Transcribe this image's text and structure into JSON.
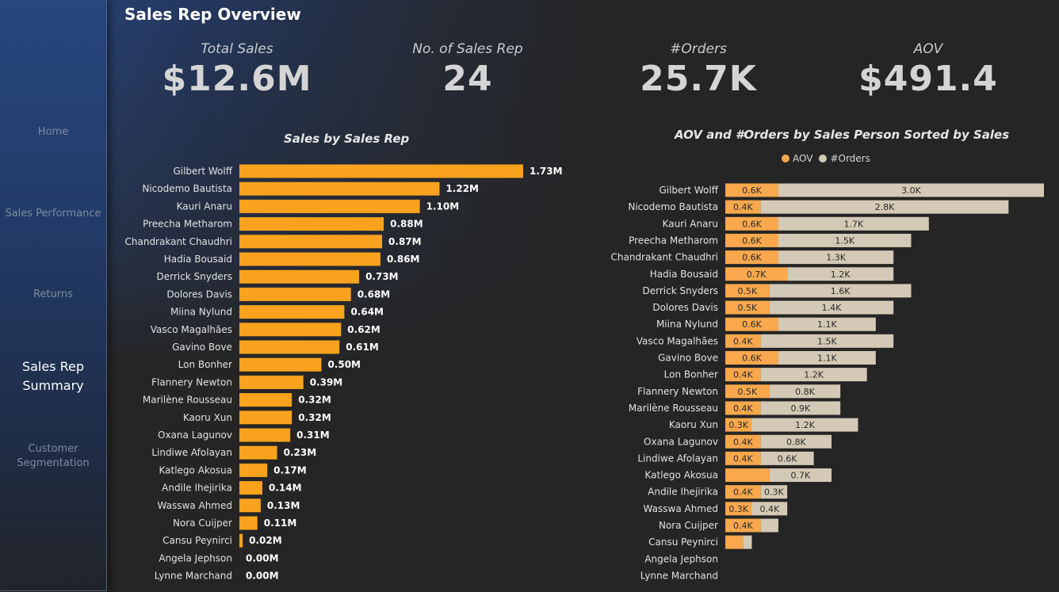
{
  "page": {
    "title": "Sales Rep Overview"
  },
  "nav": [
    {
      "label": "Home",
      "active": false
    },
    {
      "label": "Sales Performance",
      "active": false
    },
    {
      "label": "Returns",
      "active": false
    },
    {
      "label": "Sales Rep Summary",
      "active": true
    },
    {
      "label": "Customer Segmentation",
      "active": false
    }
  ],
  "kpis": [
    {
      "label": "Total Sales",
      "value": "$12.6M"
    },
    {
      "label": "No. of Sales Rep",
      "value": "24"
    },
    {
      "label": "#Orders",
      "value": "25.7K"
    },
    {
      "label": "AOV",
      "value": "$491.4"
    }
  ],
  "colors": {
    "bar": "#f9a21d",
    "aov": "#f9a84d",
    "orders": "#d4c9b6"
  },
  "legend": {
    "aov": "AOV",
    "orders": "#Orders"
  },
  "chart_data": [
    {
      "type": "bar",
      "orientation": "horizontal",
      "title": "Sales by Sales Rep",
      "categories": [
        "Gilbert Wolff",
        "Nicodemo Bautista",
        "Kauri Anaru",
        "Preecha Metharom",
        "Chandrakant Chaudhri",
        "Hadia Bousaid",
        "Derrick Snyders",
        "Dolores Davis",
        "Miina Nylund",
        "Vasco Magalhães",
        "Gavino Bove",
        "Lon Bonher",
        "Flannery Newton",
        "Marilène Rousseau",
        "Kaoru Xun",
        "Oxana Lagunov",
        "Lindiwe Afolayan",
        "Katlego Akosua",
        "Andile Ihejirika",
        "Wasswa Ahmed",
        "Nora Cuijper",
        "Cansu Peynirci",
        "Angela Jephson",
        "Lynne Marchand"
      ],
      "values": [
        1.73,
        1.22,
        1.1,
        0.88,
        0.87,
        0.86,
        0.73,
        0.68,
        0.64,
        0.62,
        0.61,
        0.5,
        0.39,
        0.32,
        0.32,
        0.31,
        0.23,
        0.17,
        0.14,
        0.13,
        0.11,
        0.02,
        0.0,
        0.0
      ],
      "labels": [
        "1.73M",
        "1.22M",
        "1.10M",
        "0.88M",
        "0.87M",
        "0.86M",
        "0.73M",
        "0.68M",
        "0.64M",
        "0.62M",
        "0.61M",
        "0.50M",
        "0.39M",
        "0.32M",
        "0.32M",
        "0.31M",
        "0.23M",
        "0.17M",
        "0.14M",
        "0.13M",
        "0.11M",
        "0.02M",
        "0.00M",
        "0.00M"
      ],
      "unit": "M",
      "xlim": [
        0,
        1.73
      ]
    },
    {
      "type": "bar",
      "orientation": "horizontal",
      "stacked": true,
      "title": "AOV and #Orders by Sales Person Sorted by Sales",
      "categories": [
        "Gilbert Wolff",
        "Nicodemo Bautista",
        "Kauri Anaru",
        "Preecha Metharom",
        "Chandrakant Chaudhri",
        "Hadia Bousaid",
        "Derrick Snyders",
        "Dolores Davis",
        "Miina Nylund",
        "Vasco Magalhães",
        "Gavino Bove",
        "Lon Bonher",
        "Flannery Newton",
        "Marilène Rousseau",
        "Kaoru Xun",
        "Oxana Lagunov",
        "Lindiwe Afolayan",
        "Katlego Akosua",
        "Andile Ihejirika",
        "Wasswa Ahmed",
        "Nora Cuijper",
        "Cansu Peynirci",
        "Angela Jephson",
        "Lynne Marchand"
      ],
      "series": [
        {
          "name": "AOV",
          "values": [
            0.6,
            0.4,
            0.6,
            0.6,
            0.6,
            0.7,
            0.5,
            0.5,
            0.6,
            0.4,
            0.6,
            0.4,
            0.5,
            0.4,
            0.3,
            0.4,
            0.4,
            0.5,
            0.4,
            0.3,
            0.4,
            0.2,
            0,
            0
          ],
          "labels": [
            "0.6K",
            "0.4K",
            "0.6K",
            "0.6K",
            "0.6K",
            "0.7K",
            "0.5K",
            "0.5K",
            "0.6K",
            "0.4K",
            "0.6K",
            "0.4K",
            "0.5K",
            "0.4K",
            "0.3K",
            "0.4K",
            "0.4K",
            "",
            "0.4K",
            "0.3K",
            "0.4K",
            "",
            "",
            ""
          ]
        },
        {
          "name": "#Orders",
          "values": [
            3.0,
            2.8,
            1.7,
            1.5,
            1.3,
            1.2,
            1.6,
            1.4,
            1.1,
            1.5,
            1.1,
            1.2,
            0.8,
            0.9,
            1.2,
            0.8,
            0.6,
            0.7,
            0.3,
            0.4,
            0.2,
            0.1,
            0,
            0
          ],
          "labels": [
            "3.0K",
            "2.8K",
            "1.7K",
            "1.5K",
            "1.3K",
            "1.2K",
            "1.6K",
            "1.4K",
            "1.1K",
            "1.5K",
            "1.1K",
            "1.2K",
            "0.8K",
            "0.9K",
            "1.2K",
            "0.8K",
            "0.6K",
            "0.7K",
            "0.3K",
            "0.4K",
            "",
            "",
            "",
            ""
          ]
        }
      ],
      "unit": "K",
      "xlim": [
        0,
        3.6
      ]
    }
  ]
}
